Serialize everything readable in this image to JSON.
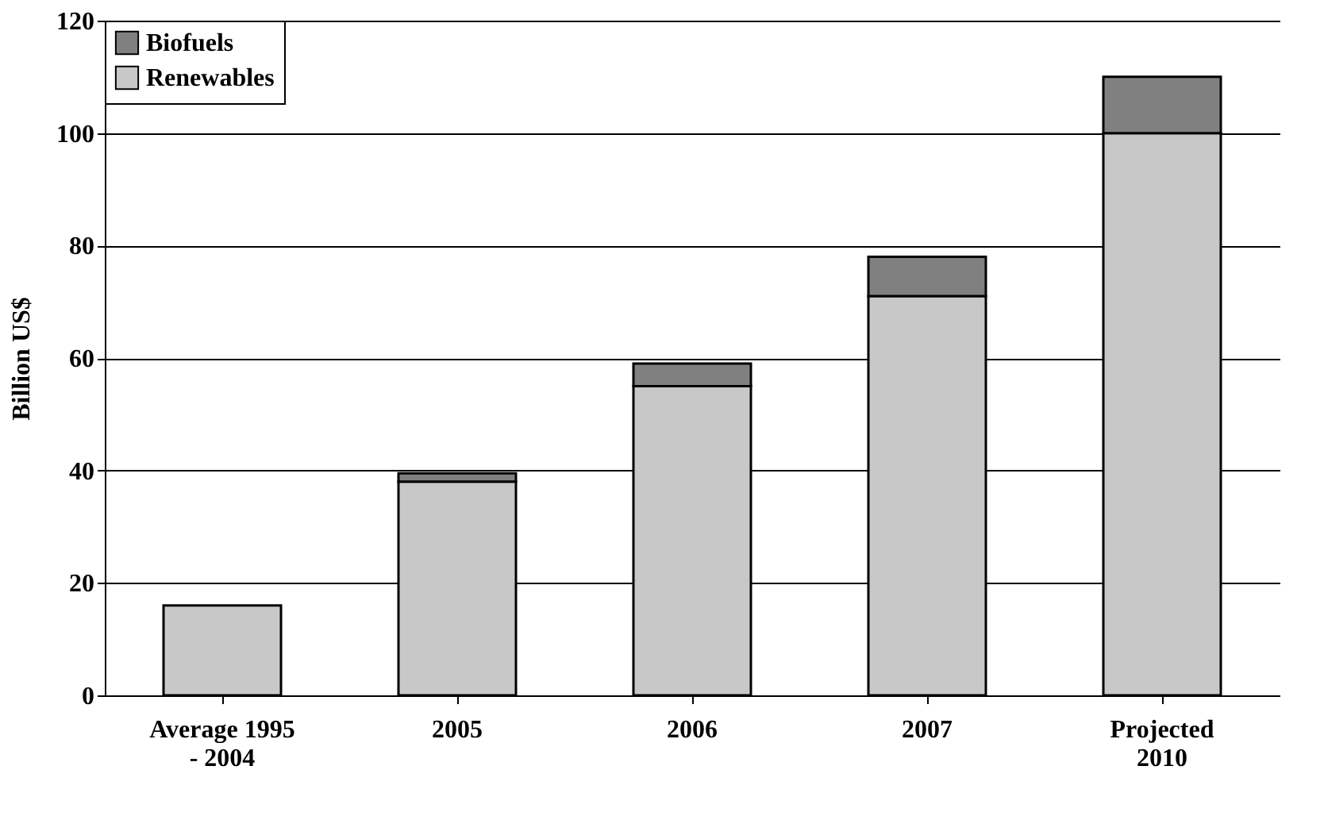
{
  "chart_data": {
    "type": "bar",
    "stacked": true,
    "ylabel": "Billion US$",
    "categories": [
      "Average 1995\n- 2004",
      "2005",
      "2006",
      "2007",
      "Projected\n2010"
    ],
    "series": [
      {
        "name": "Renewables",
        "color": "#c8c8c8",
        "values": [
          16,
          38,
          55,
          71,
          100
        ]
      },
      {
        "name": "Biofuels",
        "color": "#808080",
        "values": [
          null,
          1.5,
          4,
          7,
          10
        ]
      }
    ],
    "ylim": [
      0,
      120
    ],
    "yticks": [
      0,
      20,
      40,
      60,
      80,
      100,
      120
    ],
    "grid": "y",
    "legend": "top left"
  }
}
